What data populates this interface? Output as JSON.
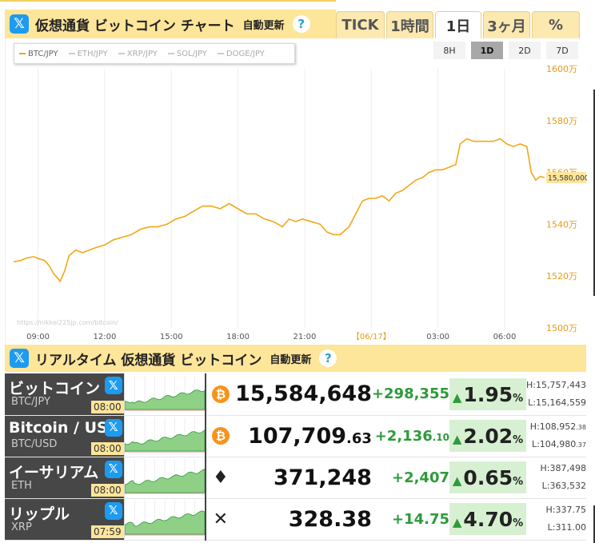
{
  "header": {
    "title": "仮想通貨 ビットコイン チャート",
    "auto": "自動更新",
    "help": "?",
    "x_icon": "𝕏"
  },
  "tabs": [
    {
      "label": "TICK",
      "w": 61
    },
    {
      "label": "1時間",
      "w": 59
    },
    {
      "label": "1日",
      "w": 58,
      "active": true
    },
    {
      "label": "3ヶ月",
      "w": 59
    },
    {
      "label": "%",
      "w": 60
    }
  ],
  "chart": {
    "legend": [
      {
        "label": "BTC/JPY",
        "on": true
      },
      {
        "label": "ETH/JPY",
        "on": false
      },
      {
        "label": "XRP/JPY",
        "on": false
      },
      {
        "label": "SOL/JPY",
        "on": false
      },
      {
        "label": "DOGE/JPY",
        "on": false
      }
    ],
    "ranges": [
      {
        "label": "8H"
      },
      {
        "label": "1D",
        "active": true
      },
      {
        "label": "2D"
      },
      {
        "label": "7D"
      }
    ],
    "watermark": "https://nikkei225jp.com/bitcoin/",
    "current_label": "15,580,000"
  },
  "chart_data": {
    "type": "line",
    "series": [
      {
        "name": "BTC/JPY",
        "color": "#f0a818"
      }
    ],
    "x_ticks": [
      "09:00",
      "12:00",
      "15:00",
      "18:00",
      "21:00",
      "【06/17】",
      "03:00",
      "06:00"
    ],
    "y_ticks": [
      "1600万",
      "1580万",
      "1560万",
      "1540万",
      "1520万",
      "1500万"
    ],
    "ylim": [
      1500,
      1600
    ],
    "y_unit": "万円",
    "x_range_hours": [
      7.9,
      31.8
    ],
    "points": [
      [
        7.9,
        1525.5
      ],
      [
        8.2,
        1526
      ],
      [
        8.5,
        1527
      ],
      [
        8.8,
        1527.5
      ],
      [
        9.0,
        1526.8
      ],
      [
        9.3,
        1526
      ],
      [
        9.5,
        1524
      ],
      [
        9.7,
        1521
      ],
      [
        10.0,
        1518
      ],
      [
        10.2,
        1522
      ],
      [
        10.4,
        1528
      ],
      [
        10.7,
        1530
      ],
      [
        11.0,
        1529
      ],
      [
        11.3,
        1530
      ],
      [
        11.6,
        1531
      ],
      [
        12.0,
        1532
      ],
      [
        12.4,
        1534
      ],
      [
        12.8,
        1535
      ],
      [
        13.2,
        1536
      ],
      [
        13.6,
        1538
      ],
      [
        14.0,
        1539
      ],
      [
        14.4,
        1539
      ],
      [
        14.8,
        1540
      ],
      [
        15.2,
        1542
      ],
      [
        15.6,
        1543
      ],
      [
        16.0,
        1545
      ],
      [
        16.4,
        1547
      ],
      [
        16.8,
        1547
      ],
      [
        17.2,
        1546
      ],
      [
        17.6,
        1548
      ],
      [
        18.0,
        1546
      ],
      [
        18.4,
        1544
      ],
      [
        18.8,
        1544
      ],
      [
        19.2,
        1542
      ],
      [
        19.6,
        1541
      ],
      [
        20.0,
        1539
      ],
      [
        20.3,
        1542
      ],
      [
        20.6,
        1541
      ],
      [
        20.9,
        1542
      ],
      [
        21.3,
        1541
      ],
      [
        21.7,
        1540
      ],
      [
        22.0,
        1537
      ],
      [
        22.3,
        1536
      ],
      [
        22.6,
        1536
      ],
      [
        23.0,
        1539
      ],
      [
        23.3,
        1544
      ],
      [
        23.6,
        1549
      ],
      [
        23.9,
        1550
      ],
      [
        24.2,
        1550
      ],
      [
        24.5,
        1551
      ],
      [
        24.8,
        1549
      ],
      [
        25.1,
        1552
      ],
      [
        25.4,
        1553
      ],
      [
        25.7,
        1555
      ],
      [
        26.0,
        1557
      ],
      [
        26.3,
        1558
      ],
      [
        26.6,
        1560
      ],
      [
        26.9,
        1561
      ],
      [
        27.2,
        1561
      ],
      [
        27.5,
        1562
      ],
      [
        27.8,
        1563
      ],
      [
        28.0,
        1571
      ],
      [
        28.3,
        1573
      ],
      [
        28.6,
        1572
      ],
      [
        28.9,
        1572
      ],
      [
        29.2,
        1572
      ],
      [
        29.5,
        1572
      ],
      [
        29.8,
        1573
      ],
      [
        30.1,
        1571
      ],
      [
        30.4,
        1570
      ],
      [
        30.7,
        1571
      ],
      [
        31.0,
        1570
      ],
      [
        31.2,
        1560
      ],
      [
        31.4,
        1557
      ],
      [
        31.6,
        1558.5
      ],
      [
        31.8,
        1558
      ]
    ]
  },
  "realtime": {
    "title": "リアルタイム 仮想通貨 ビットコイン",
    "auto": "自動更新",
    "help": "?"
  },
  "rows": [
    {
      "name": "ビットコイン",
      "ticker": "BTC/JPY",
      "time": "08:00",
      "icon": "₿",
      "icon_type": "coin",
      "price": "15,584,648",
      "price_dec": "",
      "change": "+298,355",
      "change_dec": "",
      "arrow": "▲",
      "pct": "1.95",
      "pct_unit": "%",
      "high": "H:15,757,443",
      "high_dec": "",
      "low": "L:15,164,559",
      "low_dec": ""
    },
    {
      "name": "Bitcoin / USD",
      "ticker": "BTC/USD",
      "time": "08:00",
      "icon": "₿",
      "icon_type": "coin",
      "price": "107,709",
      "price_dec": ".63",
      "change": "+2,136",
      "change_dec": ".10",
      "arrow": "▲",
      "pct": "2.02",
      "pct_unit": "%",
      "high": "H:108,952",
      "high_dec": ".38",
      "low": "L:104,980",
      "low_dec": ".37"
    },
    {
      "name": "イーサリアム",
      "ticker": "ETH",
      "time": "08:00",
      "icon": "♦",
      "icon_type": "glyph",
      "price": "371,248",
      "price_dec": "",
      "change": "+2,407",
      "change_dec": "",
      "arrow": "▲",
      "pct": "0.65",
      "pct_unit": "%",
      "high": "H:387,498",
      "high_dec": "",
      "low": "L:363,532",
      "low_dec": ""
    },
    {
      "name": "リップル",
      "ticker": "XRP",
      "time": "07:59",
      "icon": "✕",
      "icon_type": "glyph",
      "price": "328.38",
      "price_dec": "",
      "change": "+14.75",
      "change_dec": "",
      "arrow": "▲",
      "pct": "4.70",
      "pct_unit": "%",
      "high": "H:337.75",
      "high_dec": "",
      "low": "L:311.00",
      "low_dec": ""
    }
  ]
}
